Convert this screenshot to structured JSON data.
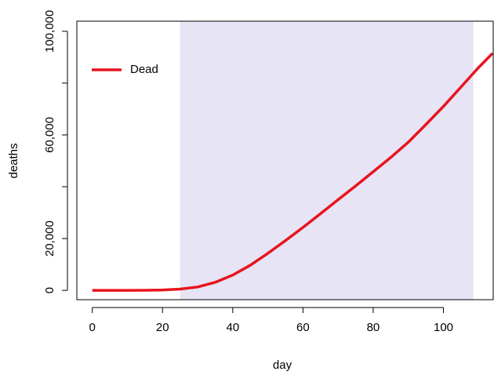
{
  "chart_data": {
    "type": "line",
    "x_label": "day",
    "y_label": "deaths",
    "x": [
      0,
      5,
      10,
      15,
      20,
      25,
      30,
      35,
      40,
      45,
      50,
      55,
      60,
      65,
      70,
      75,
      80,
      85,
      90,
      95,
      100,
      105,
      110,
      114
    ],
    "series": [
      {
        "name": "Dead",
        "color": "#e8141e",
        "values": [
          0,
          0,
          0,
          50,
          150,
          500,
          1300,
          3100,
          5900,
          9700,
          14300,
          19200,
          24300,
          29600,
          35000,
          40300,
          45800,
          51300,
          57200,
          64000,
          71000,
          78500,
          86000,
          91500
        ]
      }
    ],
    "shade": {
      "x": [
        25,
        108.5
      ],
      "color": "#e6e4f5"
    },
    "xlim": [
      -4.4,
      114.4
    ],
    "ylim": [
      -3600,
      103900
    ],
    "xticks": [
      0,
      20,
      40,
      60,
      80,
      100
    ],
    "yticks": [
      0,
      {
        "value": 20000,
        "label": "20,000"
      },
      {
        "value": 40000,
        "label": null
      },
      {
        "value": 60000,
        "label": "60,000"
      },
      {
        "value": 80000,
        "label": null
      },
      {
        "value": 100000,
        "label": "100,000"
      }
    ],
    "legend": "top-left"
  }
}
